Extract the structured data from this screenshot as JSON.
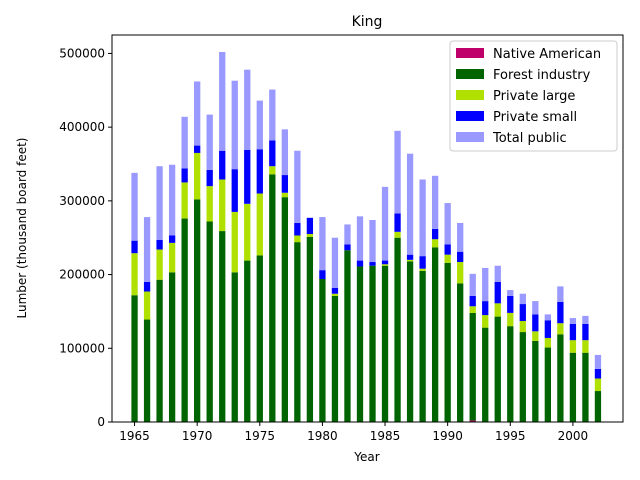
{
  "chart_data": {
    "type": "bar",
    "stacked": true,
    "title": "King",
    "xlabel": "Year",
    "ylabel": "Lumber (thousand board feet)",
    "xlim": [
      1963.2,
      2004.0
    ],
    "ylim": [
      0,
      525000
    ],
    "x_ticks": [
      1965,
      1970,
      1975,
      1980,
      1985,
      1990,
      1995,
      2000
    ],
    "y_ticks": [
      0,
      100000,
      200000,
      300000,
      400000,
      500000
    ],
    "legend_position": "top-right",
    "grid": false,
    "x": [
      1965,
      1966,
      1967,
      1968,
      1969,
      1970,
      1971,
      1972,
      1973,
      1974,
      1975,
      1976,
      1977,
      1978,
      1979,
      1980,
      1981,
      1982,
      1983,
      1984,
      1985,
      1986,
      1987,
      1988,
      1989,
      1990,
      1991,
      1992,
      1993,
      1994,
      1995,
      1996,
      1997,
      1998,
      1999,
      2000,
      2001,
      2002
    ],
    "series": [
      {
        "name": "Native American",
        "color": "#c0006a",
        "values": [
          0,
          0,
          0,
          0,
          0,
          0,
          0,
          0,
          0,
          0,
          0,
          0,
          0,
          0,
          0,
          0,
          0,
          0,
          0,
          0,
          0,
          0,
          0,
          0,
          0,
          0,
          0,
          2000,
          0,
          0,
          0,
          0,
          0,
          0,
          0,
          0,
          0,
          0
        ]
      },
      {
        "name": "Forest industry",
        "color": "#006400",
        "values": [
          172000,
          139000,
          193000,
          203000,
          276000,
          302000,
          272000,
          259000,
          203000,
          219000,
          226000,
          336000,
          305000,
          244000,
          251000,
          194000,
          171000,
          233000,
          211000,
          212000,
          212000,
          250000,
          218000,
          205000,
          237000,
          216000,
          188000,
          146000,
          128000,
          143000,
          130000,
          122000,
          110000,
          101000,
          119000,
          94000,
          94000,
          42000
        ]
      },
      {
        "name": "Private large",
        "color": "#b0e000",
        "values": [
          57000,
          38000,
          41000,
          40000,
          49000,
          63000,
          48000,
          70000,
          82000,
          77000,
          84000,
          11000,
          6000,
          9000,
          4000,
          0,
          3000,
          0,
          0,
          0,
          2000,
          8000,
          2000,
          3000,
          11000,
          11000,
          29000,
          9000,
          17000,
          18000,
          18000,
          15000,
          13000,
          13000,
          15000,
          17000,
          17000,
          17000
        ]
      },
      {
        "name": "Private small",
        "color": "#0000ff",
        "values": [
          17000,
          13000,
          13000,
          10000,
          19000,
          10000,
          22000,
          39000,
          58000,
          73000,
          60000,
          35000,
          24000,
          17000,
          22000,
          12000,
          8000,
          8000,
          8000,
          5000,
          5000,
          25000,
          7000,
          17000,
          14000,
          14000,
          14000,
          14000,
          19000,
          29000,
          23000,
          23000,
          23000,
          24000,
          29000,
          22000,
          22000,
          13000
        ]
      },
      {
        "name": "Total public",
        "color": "#9999ff",
        "values": [
          92000,
          88000,
          100000,
          96000,
          70000,
          87000,
          75000,
          134000,
          120000,
          109000,
          66000,
          69000,
          62000,
          98000,
          0,
          72000,
          68000,
          27000,
          60000,
          57000,
          100000,
          112000,
          137000,
          104000,
          72000,
          56000,
          39000,
          30000,
          45000,
          22000,
          8000,
          14000,
          18000,
          8000,
          21000,
          8000,
          11000,
          19000
        ]
      }
    ]
  }
}
